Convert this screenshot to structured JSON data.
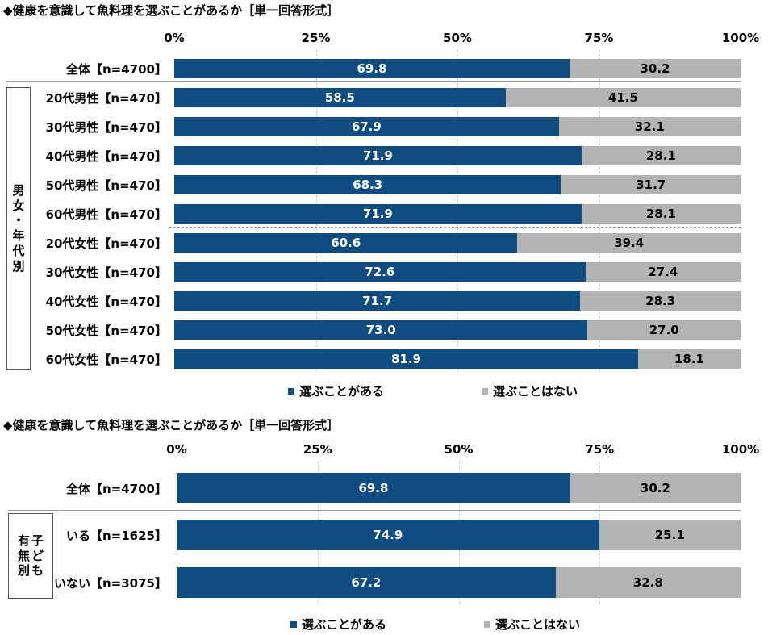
{
  "colors": {
    "yes": "#0f4c81",
    "no": "#b3b3b3"
  },
  "chart_data": [
    {
      "type": "bar",
      "stacked": true,
      "orientation": "horizontal",
      "title": "◆健康を意識して魚料理を選ぶことがあるか［単一回答形式］",
      "xlim": [
        0,
        100
      ],
      "ticks": [
        "0%",
        "25%",
        "50%",
        "75%",
        "100%"
      ],
      "legend": [
        "選ぶことがある",
        "選ぶことはない"
      ],
      "legend_position": "bottom",
      "group_label": "男女・年代別",
      "categories": [
        "全体【n=4700】",
        "20代男性【n=470】",
        "30代男性【n=470】",
        "40代男性【n=470】",
        "50代男性【n=470】",
        "60代男性【n=470】",
        "20代女性【n=470】",
        "30代女性【n=470】",
        "40代女性【n=470】",
        "50代女性【n=470】",
        "60代女性【n=470】"
      ],
      "series": [
        {
          "name": "選ぶことがある",
          "values": [
            "69.8",
            "58.5",
            "67.9",
            "71.9",
            "68.3",
            "71.9",
            "60.6",
            "72.6",
            "71.7",
            "73.0",
            "81.9"
          ]
        },
        {
          "name": "選ぶことはない",
          "values": [
            "30.2",
            "41.5",
            "32.1",
            "28.1",
            "31.7",
            "28.1",
            "39.4",
            "27.4",
            "28.3",
            "27.0",
            "18.1"
          ]
        }
      ]
    },
    {
      "type": "bar",
      "stacked": true,
      "orientation": "horizontal",
      "title": "◆健康を意識して魚料理を選ぶことがあるか［単一回答形式］",
      "xlim": [
        0,
        100
      ],
      "ticks": [
        "0%",
        "25%",
        "50%",
        "75%",
        "100%"
      ],
      "legend": [
        "選ぶことがある",
        "選ぶことはない"
      ],
      "legend_position": "bottom",
      "group_label": [
        "子ども",
        "有無別"
      ],
      "categories": [
        "全体【n=4700】",
        "いる【n=1625】",
        "いない【n=3075】"
      ],
      "series": [
        {
          "name": "選ぶことがある",
          "values": [
            "69.8",
            "74.9",
            "67.2"
          ]
        },
        {
          "name": "選ぶことはない",
          "values": [
            "30.2",
            "25.1",
            "32.8"
          ]
        }
      ]
    }
  ]
}
